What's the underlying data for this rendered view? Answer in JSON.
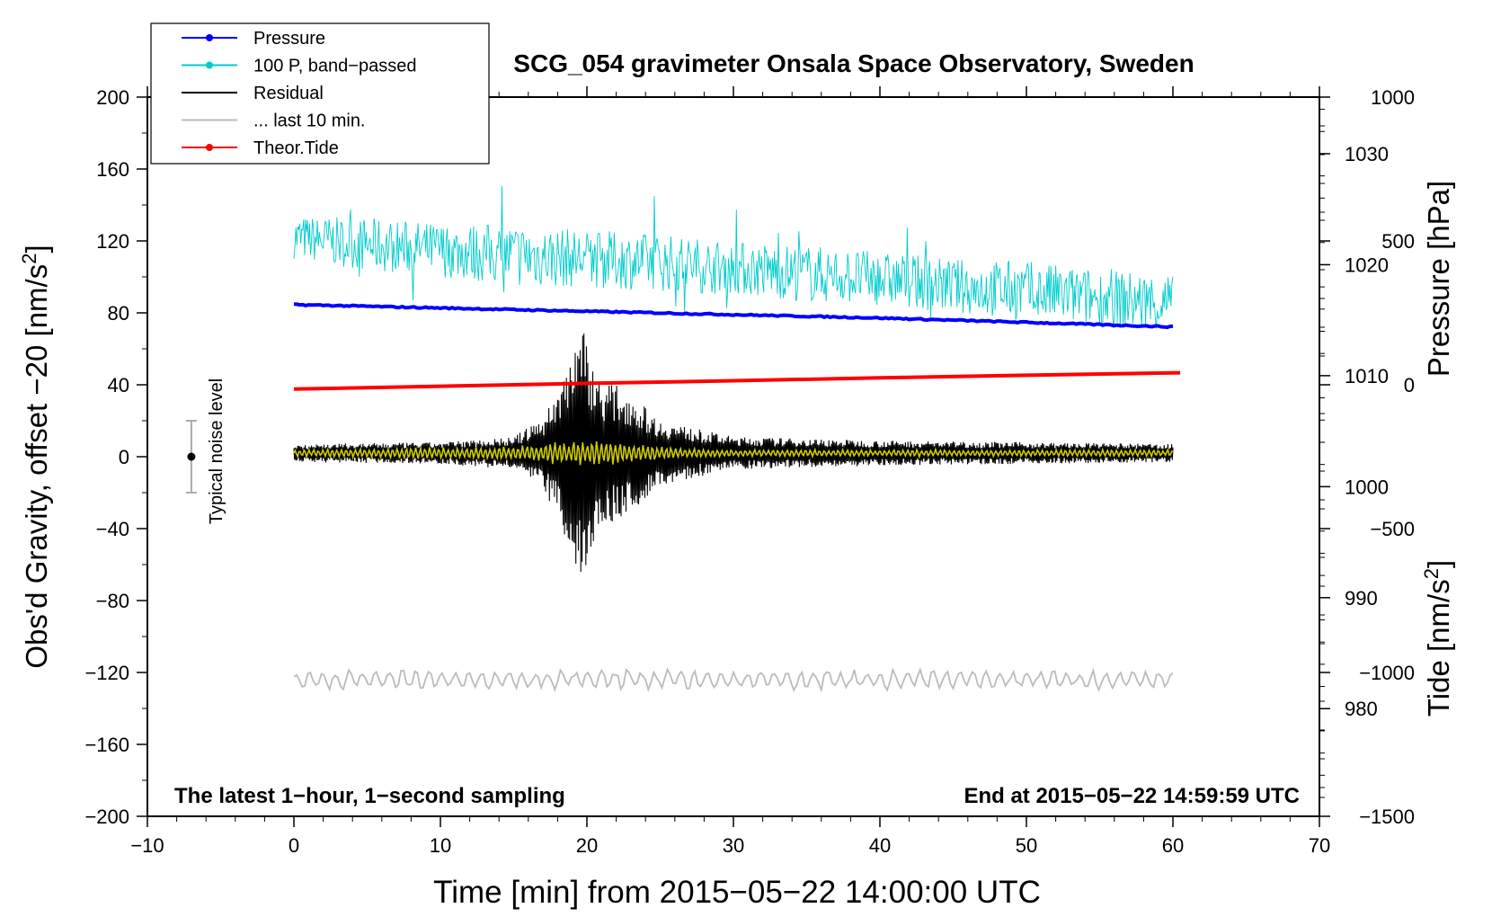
{
  "chart_data": {
    "type": "line",
    "title": "SCG_054 gravimeter Onsala Space Observatory, Sweden",
    "xlabel": "Time [min] from 2015−05−22 14:00:00 UTC",
    "ylabel_prefix": "Obs'd Gravity, offset −20 [nm/s",
    "ylabel_exp": "2",
    "ylabel_suffix": "]",
    "y2label": "Pressure [hPa]",
    "y3label_prefix": "Tide [nm/s",
    "y3label_exp": "2",
    "y3label_suffix": "]",
    "xlim": [
      -10,
      70
    ],
    "ylim": [
      -200,
      200
    ],
    "pressure_lim": [
      970.3,
      1035.1
    ],
    "tide_lim": [
      -1500,
      1000
    ],
    "x_ticks": [
      -10,
      0,
      10,
      20,
      30,
      40,
      50,
      60,
      70
    ],
    "x_tick_labels": [
      "−10",
      "0",
      "10",
      "20",
      "30",
      "40",
      "50",
      "60",
      "70"
    ],
    "y_ticks": [
      200,
      160,
      120,
      80,
      40,
      0,
      -40,
      -80,
      -120,
      -160,
      -200
    ],
    "y_tick_labels": [
      "200",
      "160",
      "120",
      "80",
      "40",
      "0",
      "−40",
      "−80",
      "−120",
      "−160",
      "−200"
    ],
    "pressure_ticks": [
      1030,
      1020,
      1010,
      1000,
      990,
      980
    ],
    "pressure_tick_labels": [
      "1030",
      "1020",
      "1010",
      "1000",
      "990",
      "980"
    ],
    "tide_ticks": [
      1000,
      500,
      0,
      -500,
      -1000,
      -1500
    ],
    "tide_tick_labels": [
      "1000",
      "500",
      "0",
      "−500",
      "−1000",
      "−1500"
    ],
    "annotation_left": "The latest 1−hour, 1−second sampling",
    "annotation_right": "End at 2015−05−22 14:59:59 UTC",
    "noise_label": "Typical noise level",
    "noise_bar": {
      "x": -7,
      "center": 0,
      "low": -20,
      "high": 20
    },
    "legend": [
      {
        "label": "Pressure",
        "color": "#0000ff",
        "marker": true
      },
      {
        "label": "100 P, band−passed",
        "color": "#00cccc",
        "marker": true
      },
      {
        "label": "Residual",
        "color": "#000000",
        "marker": false
      },
      {
        "label": "... last 10 min.",
        "color": "#bbbbbb",
        "marker": false
      },
      {
        "label": "Theor.Tide",
        "color": "#ff0000",
        "marker": true
      }
    ],
    "series": [
      {
        "name": "Pressure",
        "axis": "pressure",
        "color": "#0000ff",
        "x": [
          0,
          10,
          20,
          30,
          40,
          50,
          60
        ],
        "values": [
          1016.4,
          1016.1,
          1015.8,
          1015.5,
          1015.2,
          1014.8,
          1014.4
        ]
      },
      {
        "name": "100 P, band−passed",
        "axis": "gravity",
        "color": "#00cccc",
        "x": [
          0,
          5,
          10,
          15,
          20,
          25,
          30,
          35,
          40,
          45,
          50,
          55,
          60
        ],
        "values": [
          122,
          118,
          115,
          112,
          110,
          108,
          105,
          102,
          99,
          95,
          92,
          88,
          85
        ],
        "amplitude": [
          12,
          15,
          15,
          18,
          16,
          16,
          15,
          16,
          15,
          15,
          17,
          16,
          17
        ]
      },
      {
        "name": "Residual",
        "axis": "gravity",
        "color": "#000000",
        "x": [
          0,
          10,
          15,
          17,
          18,
          19,
          19.5,
          20,
          20.5,
          21,
          22,
          23,
          25,
          30,
          40,
          50,
          60
        ],
        "values": [
          2,
          2,
          2,
          2,
          2,
          2,
          2,
          2,
          2,
          2,
          2,
          2,
          2,
          2,
          2,
          2,
          2
        ],
        "envelope": [
          5,
          6,
          9,
          20,
          35,
          60,
          78,
          62,
          48,
          40,
          38,
          33,
          18,
          9,
          7,
          6,
          5
        ]
      },
      {
        "name": "Residual (filtered)",
        "axis": "gravity",
        "color": "#cccc00",
        "x": [
          0,
          15,
          20,
          25,
          30,
          60
        ],
        "values": [
          2,
          2,
          2,
          2,
          2,
          2
        ],
        "envelope": [
          2,
          4,
          8,
          4,
          2,
          2
        ]
      },
      {
        "name": "... last 10 min.",
        "axis": "gravity",
        "color": "#bbbbbb",
        "x": [
          0,
          60
        ],
        "values": [
          -124,
          -124
        ],
        "amplitude": [
          6,
          6
        ]
      },
      {
        "name": "Theor.Tide",
        "axis": "tide",
        "color": "#ff0000",
        "x": [
          0,
          10,
          20,
          30,
          40,
          50,
          60.5
        ],
        "values": [
          -15,
          -5,
          5,
          14,
          24,
          33,
          42
        ]
      }
    ]
  }
}
